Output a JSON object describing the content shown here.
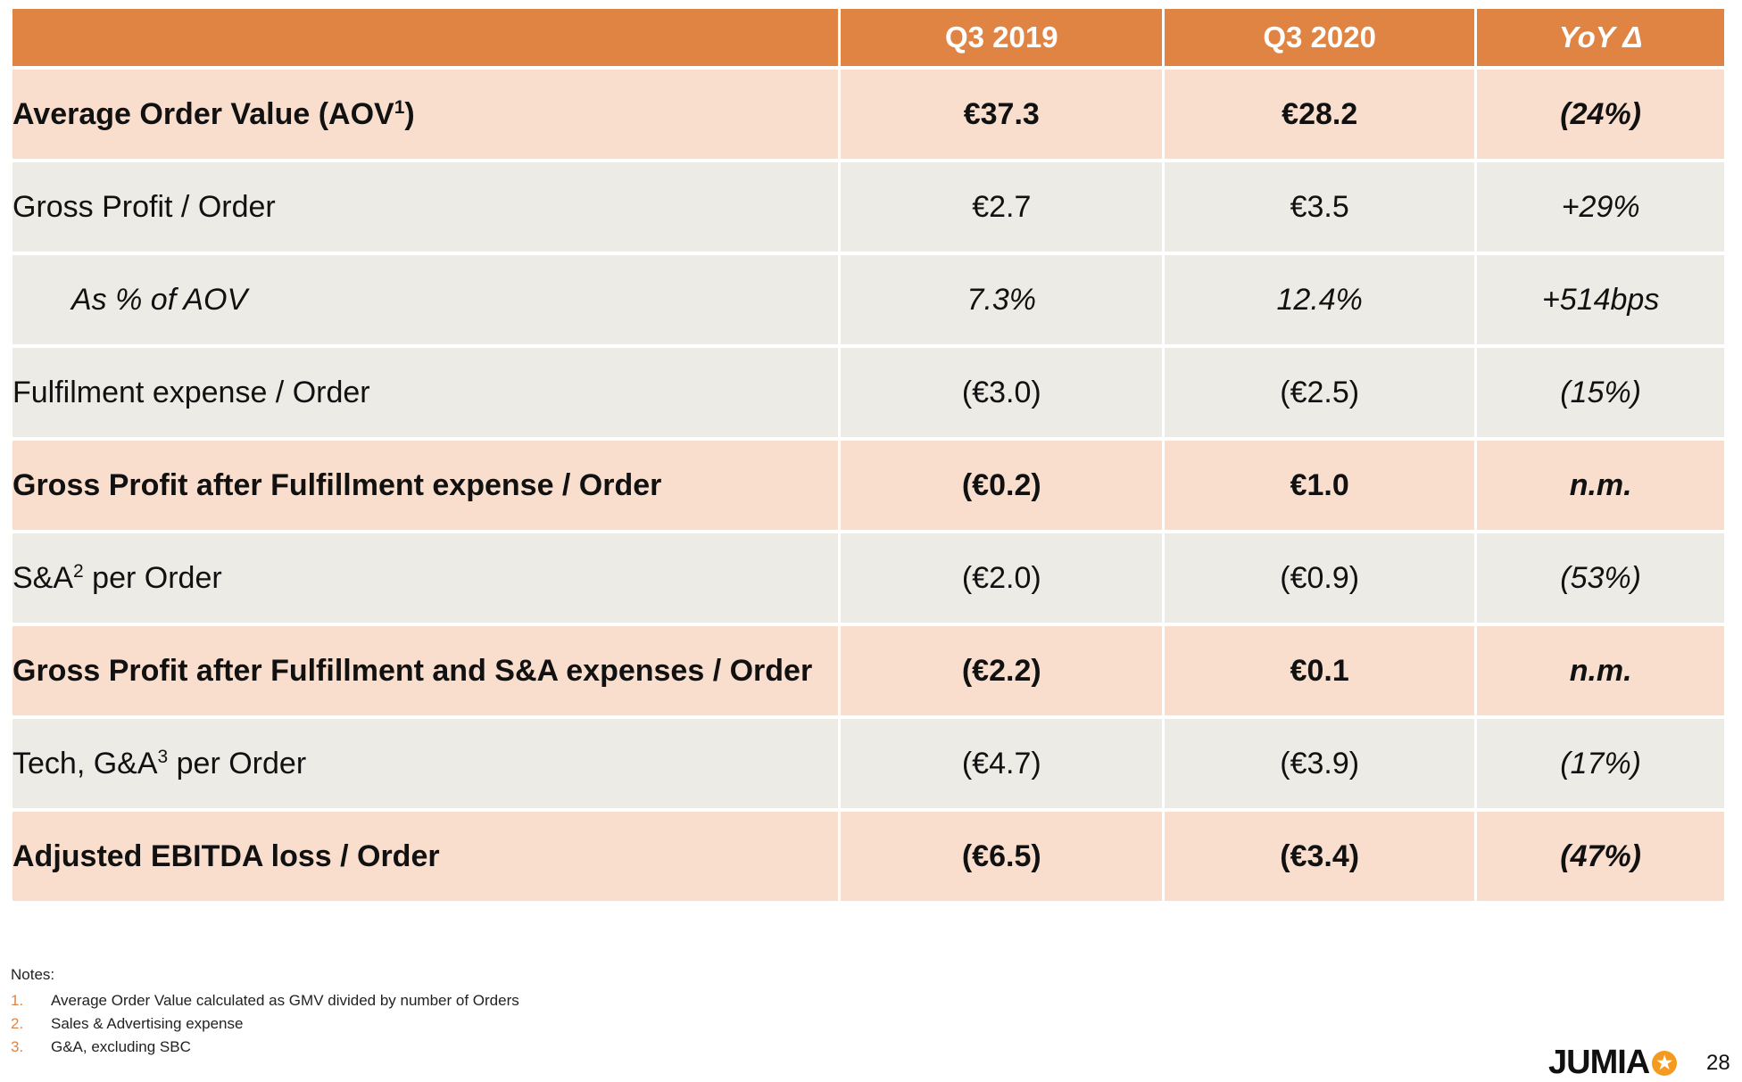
{
  "table": {
    "headers": [
      "",
      "Q3 2019",
      "Q3 2020",
      "YoY Δ"
    ],
    "rows": [
      {
        "label": "Average Order Value (AOV",
        "sup": "1",
        "after": ")",
        "q3_2019": "€37.3",
        "q3_2020": "€28.2",
        "yoy": "(24%)"
      },
      {
        "label": "Gross Profit / Order",
        "q3_2019": "€2.7",
        "q3_2020": "€3.5",
        "yoy": "+29%"
      },
      {
        "label": "As % of AOV",
        "q3_2019": "7.3%",
        "q3_2020": "12.4%",
        "yoy": "+514bps"
      },
      {
        "label": "Fulfilment expense / Order",
        "q3_2019": "(€3.0)",
        "q3_2020": "(€2.5)",
        "yoy": "(15%)"
      },
      {
        "label": "Gross Profit after Fulfillment expense / Order",
        "q3_2019": "(€0.2)",
        "q3_2020": "€1.0",
        "yoy": "n.m."
      },
      {
        "label": "S&A",
        "sup": "2",
        "after": " per Order",
        "q3_2019": "(€2.0)",
        "q3_2020": "(€0.9)",
        "yoy": "(53%)"
      },
      {
        "label": "Gross Profit after Fulfillment and S&A expenses / Order",
        "q3_2019": "(€2.2)",
        "q3_2020": "€0.1",
        "yoy": "n.m."
      },
      {
        "label": "Tech, G&A",
        "sup": "3",
        "after": " per Order",
        "q3_2019": "(€4.7)",
        "q3_2020": "(€3.9)",
        "yoy": "(17%)"
      },
      {
        "label": "Adjusted EBITDA loss / Order",
        "q3_2019": "(€6.5)",
        "q3_2020": "(€3.4)",
        "yoy": "(47%)"
      }
    ]
  },
  "notes": {
    "title": "Notes:",
    "items": [
      {
        "num": "1.",
        "text": "Average Order Value calculated as GMV divided by number of Orders"
      },
      {
        "num": "2.",
        "text": "Sales & Advertising expense"
      },
      {
        "num": "3.",
        "text": "G&A, excluding SBC"
      }
    ]
  },
  "footer": {
    "logo_text": "JUMIA",
    "page_number": "28"
  },
  "colors": {
    "header": "#e08444",
    "highlight_row": "#f9decd",
    "plain_row": "#edebe5"
  }
}
